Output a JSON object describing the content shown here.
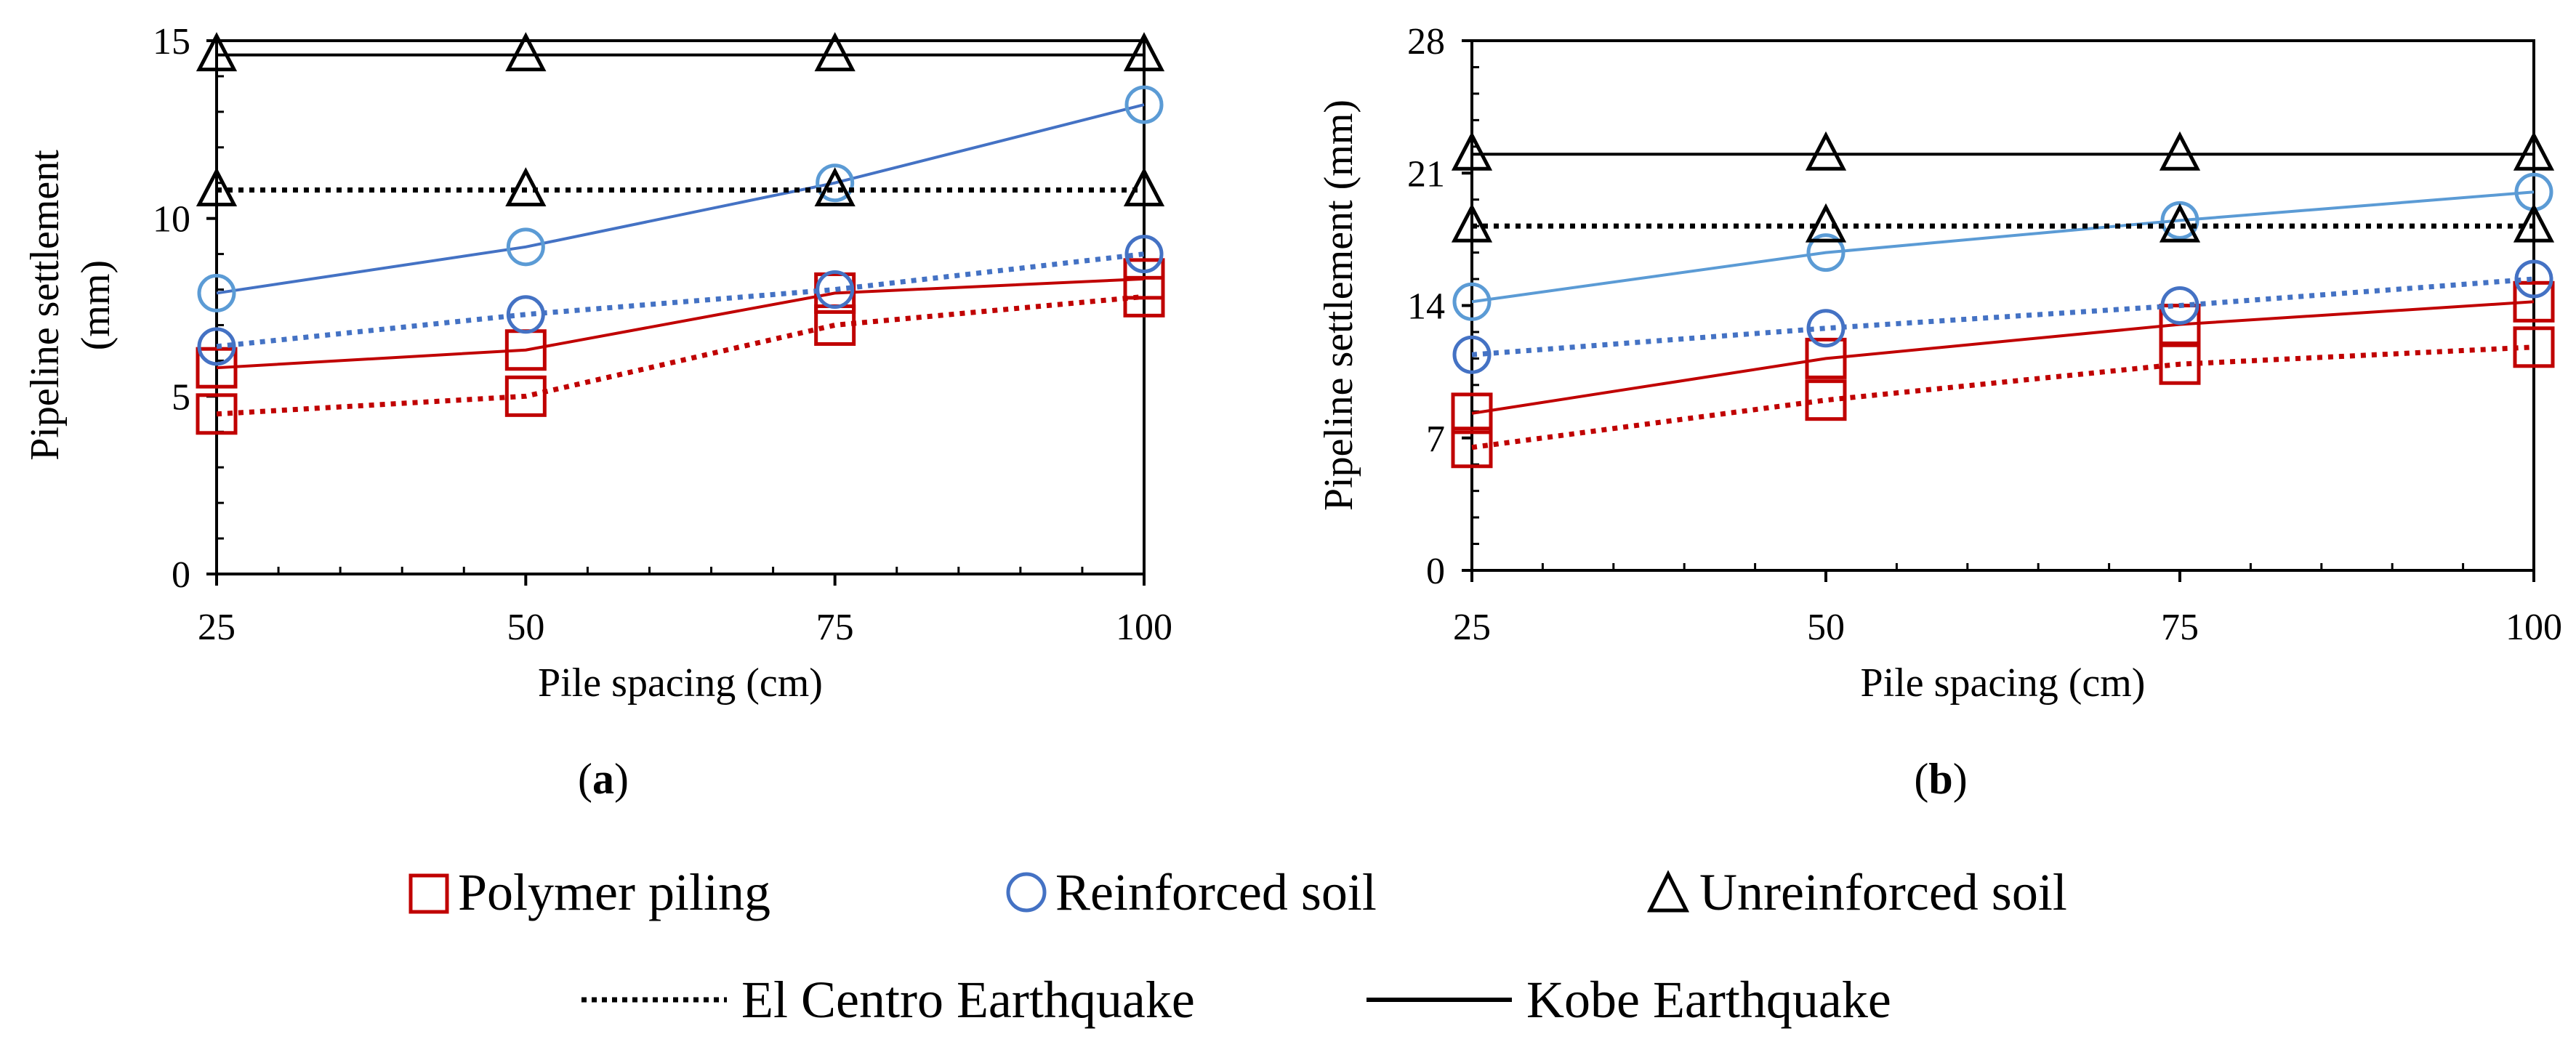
{
  "colors": {
    "polymer": "#C00000",
    "reinforced_kobe": "#4472C4",
    "reinforced_elcentro": "#4472C4",
    "reinforced_marker": "#5B9BD5",
    "reinforced_kobe_b": "#5B9BD5",
    "unreinforced": "#000000"
  },
  "chart_data": [
    {
      "panel": "(a)",
      "panel_letter": "a",
      "type": "line",
      "xlabel": "Pile spacing (cm)",
      "ylabel_line1": "Pipeline settlement",
      "ylabel_line2": "(mm)",
      "ylim": [
        0,
        15
      ],
      "yticks": [
        0,
        5,
        10,
        15
      ],
      "x": [
        25,
        50,
        75,
        100
      ],
      "xlim": [
        25,
        100
      ],
      "series": [
        {
          "name": "Polymer piling - Kobe Earthquake",
          "soil": "polymer",
          "quake": "kobe",
          "marker": "square",
          "values": [
            5.8,
            6.3,
            7.9,
            8.3
          ]
        },
        {
          "name": "Polymer piling - El Centro Earthquake",
          "soil": "polymer",
          "quake": "elcentro",
          "marker": "square",
          "values": [
            4.5,
            5.0,
            7.0,
            7.8
          ]
        },
        {
          "name": "Reinforced soil - Kobe Earthquake",
          "soil": "reinforced",
          "quake": "kobe",
          "marker": "circle",
          "values": [
            7.9,
            9.2,
            11.0,
            13.2
          ]
        },
        {
          "name": "Reinforced soil - El Centro Earthquake",
          "soil": "reinforced",
          "quake": "elcentro",
          "marker": "circle",
          "values": [
            6.4,
            7.3,
            8.0,
            9.0
          ]
        },
        {
          "name": "Unreinforced soil - Kobe Earthquake",
          "soil": "unreinforced",
          "quake": "kobe",
          "marker": "triangle",
          "values": [
            14.6,
            14.6,
            14.6,
            14.6
          ]
        },
        {
          "name": "Unreinforced soil - El Centro Earthquake",
          "soil": "unreinforced",
          "quake": "elcentro",
          "marker": "triangle",
          "values": [
            10.8,
            10.8,
            10.8,
            10.8
          ]
        }
      ]
    },
    {
      "panel": "(b)",
      "panel_letter": "b",
      "type": "line",
      "xlabel": "Pile spacing (cm)",
      "ylabel_line1": "Pipeline settlement (mm)",
      "ylabel_line2": "",
      "ylim": [
        0,
        28
      ],
      "yticks": [
        0,
        7,
        14,
        21,
        28
      ],
      "x": [
        25,
        50,
        75,
        100
      ],
      "xlim": [
        25,
        100
      ],
      "series": [
        {
          "name": "Polymer piling - Kobe Earthquake",
          "soil": "polymer",
          "quake": "kobe",
          "marker": "square",
          "values": [
            8.3,
            11.2,
            13.0,
            14.2
          ]
        },
        {
          "name": "Polymer piling - El Centro Earthquake",
          "soil": "polymer",
          "quake": "elcentro",
          "marker": "square",
          "values": [
            6.5,
            9.0,
            10.9,
            11.8
          ]
        },
        {
          "name": "Reinforced soil - Kobe Earthquake",
          "soil": "reinforced",
          "quake": "kobe",
          "marker": "circle",
          "values": [
            14.2,
            16.8,
            18.5,
            20.0
          ]
        },
        {
          "name": "Reinforced soil - El Centro Earthquake",
          "soil": "reinforced",
          "quake": "elcentro",
          "marker": "circle",
          "values": [
            11.4,
            12.8,
            14.0,
            15.4
          ]
        },
        {
          "name": "Unreinforced soil - Kobe Earthquake",
          "soil": "unreinforced",
          "quake": "kobe",
          "marker": "triangle",
          "values": [
            22.0,
            22.0,
            22.0,
            22.0
          ]
        },
        {
          "name": "Unreinforced soil - El Centro Earthquake",
          "soil": "unreinforced",
          "quake": "elcentro",
          "marker": "triangle",
          "values": [
            18.2,
            18.2,
            18.2,
            18.2
          ]
        }
      ]
    }
  ],
  "legend": {
    "markers": [
      {
        "label": "Polymer piling",
        "marker": "square"
      },
      {
        "label": "Reinforced soil",
        "marker": "circle"
      },
      {
        "label": "Unreinforced soil",
        "marker": "triangle"
      }
    ],
    "lines": [
      {
        "label": "El Centro Earthquake",
        "style": "dotted"
      },
      {
        "label": "Kobe Earthquake",
        "style": "solid"
      }
    ]
  }
}
